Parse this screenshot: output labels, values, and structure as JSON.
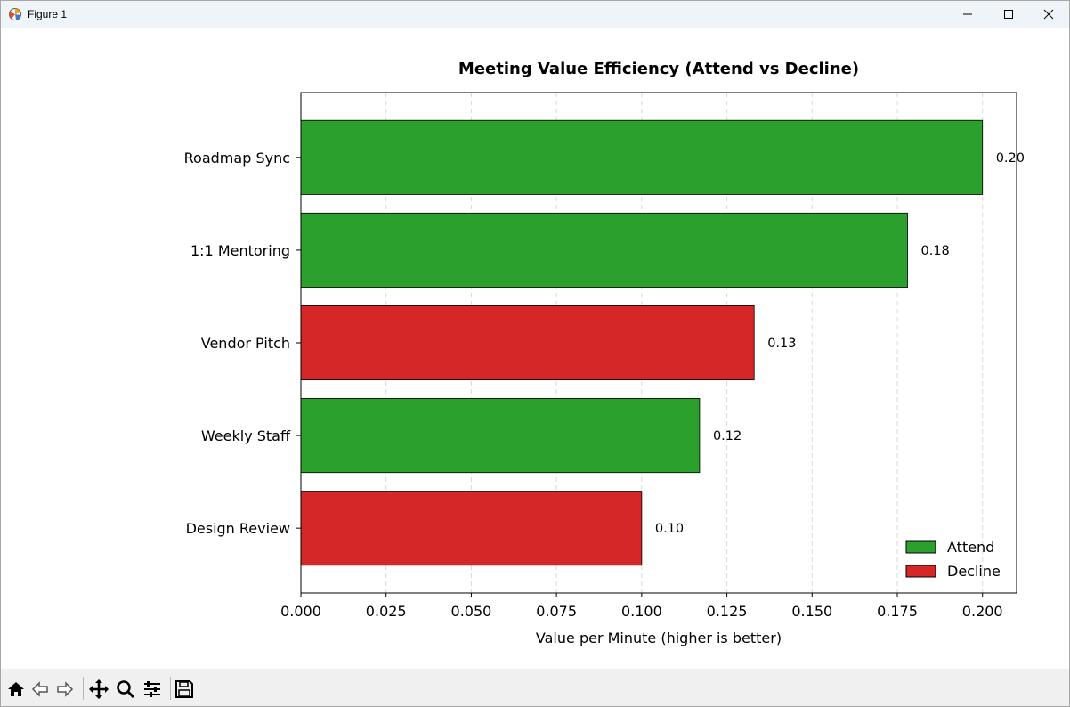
{
  "window": {
    "title": "Figure 1",
    "icons": [
      "app-icon",
      "minimize-icon",
      "maximize-icon",
      "close-icon"
    ]
  },
  "toolbar": {
    "buttons": [
      {
        "name": "home-icon",
        "label": "Home"
      },
      {
        "name": "back-icon",
        "label": "Back"
      },
      {
        "name": "forward-icon",
        "label": "Forward"
      },
      {
        "name": "pan-icon",
        "label": "Pan"
      },
      {
        "name": "zoom-icon",
        "label": "Zoom"
      },
      {
        "name": "configure-subplots-icon",
        "label": "Configure subplots"
      },
      {
        "name": "save-icon",
        "label": "Save"
      }
    ]
  },
  "chart_data": {
    "type": "bar",
    "orientation": "horizontal",
    "title": "Meeting Value Efficiency (Attend vs Decline)",
    "xlabel": "Value per Minute (higher is better)",
    "ylabel": "",
    "xlim": [
      0,
      0.21
    ],
    "xticks": [
      0.0,
      0.025,
      0.05,
      0.075,
      0.1,
      0.125,
      0.15,
      0.175,
      0.2
    ],
    "xtick_labels": [
      "0.000",
      "0.025",
      "0.050",
      "0.075",
      "0.100",
      "0.125",
      "0.150",
      "0.175",
      "0.200"
    ],
    "grid": "x dashed",
    "categories": [
      "Roadmap Sync",
      "1:1 Mentoring",
      "Vendor Pitch",
      "Weekly Staff",
      "Design Review"
    ],
    "values": [
      0.2,
      0.178,
      0.133,
      0.117,
      0.1
    ],
    "value_labels": [
      "0.20",
      "0.18",
      "0.13",
      "0.12",
      "0.10"
    ],
    "decisions": [
      "Attend",
      "Attend",
      "Decline",
      "Attend",
      "Decline"
    ],
    "colors": {
      "Attend": "#2ca02c",
      "Decline": "#d62728"
    },
    "legend": {
      "position": "lower-right",
      "entries": [
        "Attend",
        "Decline"
      ]
    }
  }
}
